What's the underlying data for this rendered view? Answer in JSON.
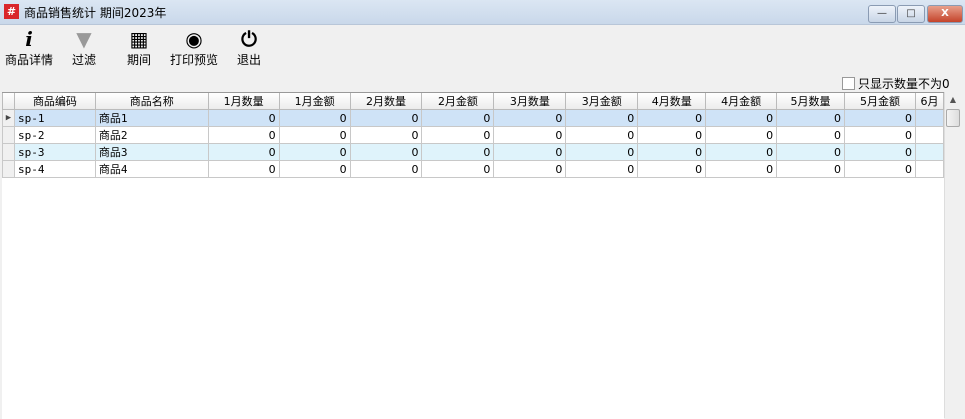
{
  "window": {
    "title": "商品销售统计 期间2023年",
    "icon": "app-grid-icon",
    "minimize": "—",
    "maximize": "□",
    "close": "X"
  },
  "toolbar": [
    {
      "label": "商品详情",
      "icon": "info-icon",
      "glyph": "i"
    },
    {
      "label": "过滤",
      "icon": "filter-icon",
      "glyph": "▼"
    },
    {
      "label": "期间",
      "icon": "calendar-icon",
      "glyph": "▦"
    },
    {
      "label": "打印预览",
      "icon": "eye-icon",
      "glyph": "◉"
    },
    {
      "label": "退出",
      "icon": "power-icon",
      "glyph": "⏻"
    }
  ],
  "filter_checkbox": {
    "label": "只显示数量不为0",
    "checked": false
  },
  "table": {
    "columns": [
      "商品编码",
      "商品名称",
      "1月数量",
      "1月金额",
      "2月数量",
      "2月金额",
      "3月数量",
      "3月金额",
      "4月数量",
      "4月金额",
      "5月数量",
      "5月金额",
      "6月"
    ],
    "rows": [
      [
        "sp-1",
        "商品1",
        "0",
        "0",
        "0",
        "0",
        "0",
        "0",
        "0",
        "0",
        "0",
        "0",
        ""
      ],
      [
        "sp-2",
        "商品2",
        "0",
        "0",
        "0",
        "0",
        "0",
        "0",
        "0",
        "0",
        "0",
        "0",
        ""
      ],
      [
        "sp-3",
        "商品3",
        "0",
        "0",
        "0",
        "0",
        "0",
        "0",
        "0",
        "0",
        "0",
        "0",
        ""
      ],
      [
        "sp-4",
        "商品4",
        "0",
        "0",
        "0",
        "0",
        "0",
        "0",
        "0",
        "0",
        "0",
        "0",
        ""
      ]
    ],
    "selected_row": 0
  }
}
